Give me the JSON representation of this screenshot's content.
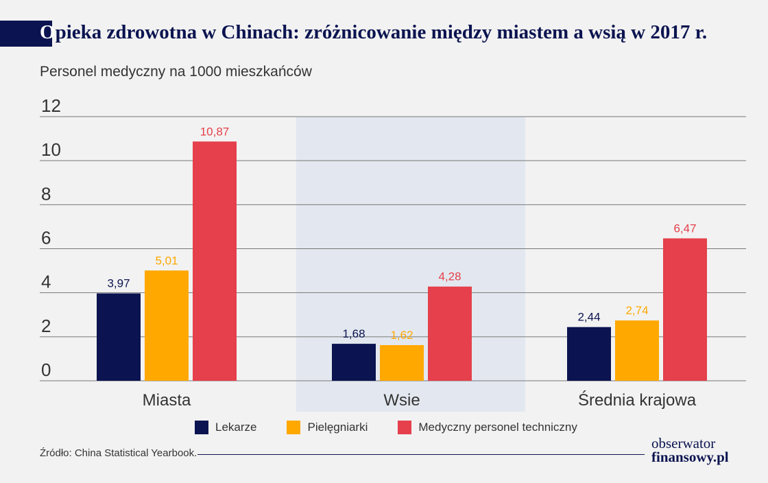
{
  "header": {
    "title_first_letter": "O",
    "title_rest": "pieka zdrowotna w Chinach: zróżnicowanie między miastem a wsią w 2017 r.",
    "subtitle": "Personel medyczny na 1000 mieszkańców"
  },
  "colors": {
    "title_bar": "#0b1450",
    "highlight_band": "#e3e8f0",
    "grid": "#777777"
  },
  "chart_data": {
    "type": "bar",
    "title": "Opieka zdrowotna w Chinach: zróżnicowanie między miastem a wsią w 2017 r.",
    "ylabel": "Personel medyczny na 1000 mieszkańców",
    "xlabel": "",
    "categories": [
      "Miasta",
      "Wsie",
      "Średnia krajowa"
    ],
    "highlighted_category": "Wsie",
    "ylim": [
      0,
      12
    ],
    "yticks": [
      "0",
      "2",
      "4",
      "6",
      "8",
      "10",
      "12"
    ],
    "grid": true,
    "legend_position": "bottom",
    "series": [
      {
        "name": "Lekarze",
        "color": "#0b1450",
        "values": [
          3.97,
          1.68,
          2.44
        ],
        "labels": [
          "3,97",
          "1,68",
          "2,44"
        ]
      },
      {
        "name": "Pielęgniarki",
        "color": "#ffa800",
        "values": [
          5.01,
          1.62,
          2.74
        ],
        "labels": [
          "5,01",
          "1,62",
          "2,74"
        ]
      },
      {
        "name": "Medyczny personel techniczny",
        "color": "#e5404b",
        "values": [
          10.87,
          4.28,
          6.47
        ],
        "labels": [
          "10,87",
          "4,28",
          "6,47"
        ]
      }
    ]
  },
  "footer": {
    "source": "Źródło: China Statistical Yearbook.",
    "logo_line1": "obserwator",
    "logo_line2": "finansowy.pl"
  }
}
